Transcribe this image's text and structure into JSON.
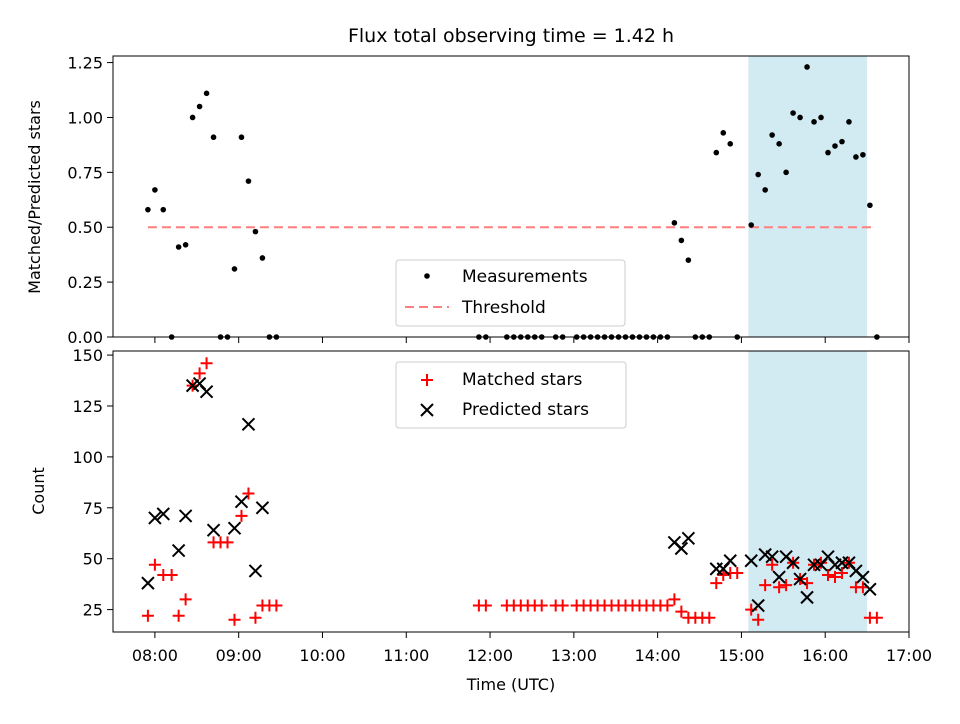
{
  "title": "Flux total observing time = 1.42 h",
  "colors": {
    "measurement": "#000000",
    "threshold": "#ff7f7f",
    "matched": "#ff0000",
    "predicted": "#000000",
    "span": "#add8e6"
  },
  "chart_data": [
    {
      "type": "scatter",
      "ylabel": "Matched/Predicted stars",
      "xlim": [
        "07:30",
        "17:00"
      ],
      "ylim": [
        0,
        1.28
      ],
      "yticks": [
        "0.00",
        "0.25",
        "0.50",
        "0.75",
        "1.00",
        "1.25"
      ],
      "highlight_span": [
        "15:05",
        "16:30"
      ],
      "legend": {
        "placement": "lower center",
        "entries": [
          "Measurements",
          "Threshold"
        ]
      },
      "threshold": {
        "name": "Threshold",
        "value": 0.5,
        "x": [
          "07:55",
          "16:35"
        ]
      },
      "series": [
        {
          "name": "Measurements",
          "marker": "dot",
          "points": [
            [
              "07:55",
              0.58
            ],
            [
              "08:00",
              0.67
            ],
            [
              "08:06",
              0.58
            ],
            [
              "08:12",
              0.0
            ],
            [
              "08:17",
              0.41
            ],
            [
              "08:22",
              0.42
            ],
            [
              "08:27",
              1.0
            ],
            [
              "08:32",
              1.05
            ],
            [
              "08:37",
              1.11
            ],
            [
              "08:42",
              0.91
            ],
            [
              "08:47",
              0.0
            ],
            [
              "08:52",
              0.0
            ],
            [
              "08:57",
              0.31
            ],
            [
              "09:02",
              0.91
            ],
            [
              "09:07",
              0.71
            ],
            [
              "09:12",
              0.48
            ],
            [
              "09:17",
              0.36
            ],
            [
              "09:22",
              0.0
            ],
            [
              "09:27",
              0.0
            ],
            [
              "11:52",
              0.0
            ],
            [
              "11:57",
              0.0
            ],
            [
              "12:12",
              0.0
            ],
            [
              "12:17",
              0.0
            ],
            [
              "12:22",
              0.0
            ],
            [
              "12:27",
              0.0
            ],
            [
              "12:32",
              0.0
            ],
            [
              "12:37",
              0.0
            ],
            [
              "12:47",
              0.0
            ],
            [
              "12:52",
              0.0
            ],
            [
              "13:02",
              0.0
            ],
            [
              "13:07",
              0.0
            ],
            [
              "13:12",
              0.0
            ],
            [
              "13:17",
              0.0
            ],
            [
              "13:22",
              0.0
            ],
            [
              "13:27",
              0.0
            ],
            [
              "13:32",
              0.0
            ],
            [
              "13:37",
              0.0
            ],
            [
              "13:42",
              0.0
            ],
            [
              "13:47",
              0.0
            ],
            [
              "13:52",
              0.0
            ],
            [
              "13:57",
              0.0
            ],
            [
              "14:02",
              0.0
            ],
            [
              "14:07",
              0.0
            ],
            [
              "14:12",
              0.52
            ],
            [
              "14:17",
              0.44
            ],
            [
              "14:22",
              0.35
            ],
            [
              "14:27",
              0.0
            ],
            [
              "14:32",
              0.0
            ],
            [
              "14:37",
              0.0
            ],
            [
              "14:42",
              0.84
            ],
            [
              "14:47",
              0.93
            ],
            [
              "14:52",
              0.88
            ],
            [
              "14:57",
              0.0
            ],
            [
              "15:07",
              0.51
            ],
            [
              "15:12",
              0.74
            ],
            [
              "15:17",
              0.67
            ],
            [
              "15:22",
              0.92
            ],
            [
              "15:27",
              0.88
            ],
            [
              "15:32",
              0.75
            ],
            [
              "15:37",
              1.02
            ],
            [
              "15:42",
              1.0
            ],
            [
              "15:47",
              1.23
            ],
            [
              "15:52",
              0.98
            ],
            [
              "15:57",
              1.0
            ],
            [
              "16:02",
              0.84
            ],
            [
              "16:07",
              0.87
            ],
            [
              "16:12",
              0.89
            ],
            [
              "16:17",
              0.98
            ],
            [
              "16:22",
              0.82
            ],
            [
              "16:27",
              0.83
            ],
            [
              "16:32",
              0.6
            ],
            [
              "16:37",
              0.0
            ]
          ]
        }
      ]
    },
    {
      "type": "scatter",
      "ylabel": "Count",
      "xlabel": "Time (UTC)",
      "xlim": [
        "07:30",
        "17:00"
      ],
      "xticks": [
        "08:00",
        "09:00",
        "10:00",
        "11:00",
        "12:00",
        "13:00",
        "14:00",
        "15:00",
        "16:00",
        "17:00"
      ],
      "ylim": [
        14,
        152
      ],
      "yticks": [
        "25",
        "50",
        "75",
        "100",
        "125",
        "150"
      ],
      "highlight_span": [
        "15:05",
        "16:30"
      ],
      "legend": {
        "placement": "upper center",
        "entries": [
          "Matched stars",
          "Predicted stars"
        ]
      },
      "series": [
        {
          "name": "Matched stars",
          "marker": "plus",
          "points": [
            [
              "07:55",
              22
            ],
            [
              "08:00",
              47
            ],
            [
              "08:06",
              42
            ],
            [
              "08:12",
              42
            ],
            [
              "08:17",
              22
            ],
            [
              "08:22",
              30
            ],
            [
              "08:27",
              135
            ],
            [
              "08:32",
              141
            ],
            [
              "08:37",
              146
            ],
            [
              "08:42",
              58
            ],
            [
              "08:47",
              58
            ],
            [
              "08:52",
              58
            ],
            [
              "08:57",
              20
            ],
            [
              "09:02",
              71
            ],
            [
              "09:07",
              82
            ],
            [
              "09:12",
              21
            ],
            [
              "09:17",
              27
            ],
            [
              "09:22",
              27
            ],
            [
              "09:27",
              27
            ],
            [
              "11:52",
              27
            ],
            [
              "11:57",
              27
            ],
            [
              "12:12",
              27
            ],
            [
              "12:17",
              27
            ],
            [
              "12:22",
              27
            ],
            [
              "12:27",
              27
            ],
            [
              "12:32",
              27
            ],
            [
              "12:37",
              27
            ],
            [
              "12:47",
              27
            ],
            [
              "12:52",
              27
            ],
            [
              "13:02",
              27
            ],
            [
              "13:07",
              27
            ],
            [
              "13:12",
              27
            ],
            [
              "13:17",
              27
            ],
            [
              "13:22",
              27
            ],
            [
              "13:27",
              27
            ],
            [
              "13:32",
              27
            ],
            [
              "13:37",
              27
            ],
            [
              "13:42",
              27
            ],
            [
              "13:47",
              27
            ],
            [
              "13:52",
              27
            ],
            [
              "13:57",
              27
            ],
            [
              "14:02",
              27
            ],
            [
              "14:07",
              27
            ],
            [
              "14:12",
              30
            ],
            [
              "14:17",
              24
            ],
            [
              "14:22",
              21
            ],
            [
              "14:27",
              21
            ],
            [
              "14:32",
              21
            ],
            [
              "14:37",
              21
            ],
            [
              "14:42",
              38
            ],
            [
              "14:47",
              42
            ],
            [
              "14:52",
              43
            ],
            [
              "14:57",
              43
            ],
            [
              "15:07",
              25
            ],
            [
              "15:12",
              20
            ],
            [
              "15:17",
              37
            ],
            [
              "15:22",
              47
            ],
            [
              "15:27",
              36
            ],
            [
              "15:32",
              37
            ],
            [
              "15:37",
              48
            ],
            [
              "15:42",
              40
            ],
            [
              "15:47",
              38
            ],
            [
              "15:52",
              47
            ],
            [
              "15:57",
              48
            ],
            [
              "16:02",
              42
            ],
            [
              "16:07",
              41
            ],
            [
              "16:12",
              43
            ],
            [
              "16:17",
              48
            ],
            [
              "16:22",
              36
            ],
            [
              "16:27",
              36
            ],
            [
              "16:32",
              21
            ],
            [
              "16:37",
              21
            ]
          ]
        },
        {
          "name": "Predicted stars",
          "marker": "cross",
          "points": [
            [
              "07:55",
              38
            ],
            [
              "08:00",
              70
            ],
            [
              "08:06",
              72
            ],
            [
              "08:17",
              54
            ],
            [
              "08:22",
              71
            ],
            [
              "08:27",
              135
            ],
            [
              "08:32",
              136
            ],
            [
              "08:37",
              132
            ],
            [
              "08:42",
              64
            ],
            [
              "08:57",
              65
            ],
            [
              "09:02",
              78
            ],
            [
              "09:07",
              116
            ],
            [
              "09:12",
              44
            ],
            [
              "09:17",
              75
            ],
            [
              "14:12",
              58
            ],
            [
              "14:17",
              55
            ],
            [
              "14:22",
              60
            ],
            [
              "14:42",
              45
            ],
            [
              "14:47",
              45
            ],
            [
              "14:52",
              49
            ],
            [
              "15:07",
              49
            ],
            [
              "15:12",
              27
            ],
            [
              "15:17",
              52
            ],
            [
              "15:22",
              51
            ],
            [
              "15:27",
              41
            ],
            [
              "15:32",
              51
            ],
            [
              "15:37",
              48
            ],
            [
              "15:42",
              40
            ],
            [
              "15:47",
              31
            ],
            [
              "15:52",
              47
            ],
            [
              "15:57",
              47
            ],
            [
              "16:02",
              51
            ],
            [
              "16:07",
              47
            ],
            [
              "16:12",
              48
            ],
            [
              "16:17",
              48
            ],
            [
              "16:22",
              44
            ],
            [
              "16:27",
              41
            ],
            [
              "16:32",
              35
            ]
          ]
        }
      ]
    }
  ]
}
